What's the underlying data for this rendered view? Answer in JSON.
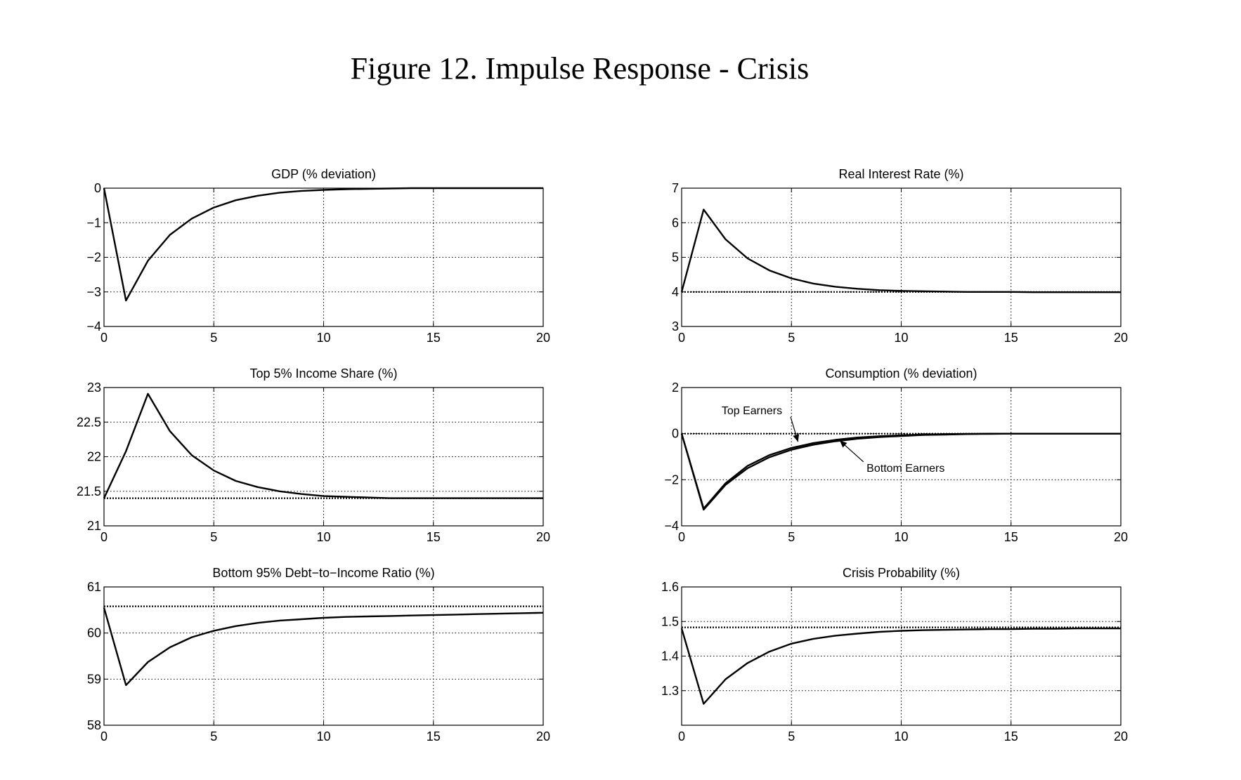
{
  "figure_title": "Figure 12. Impulse Response - Crisis",
  "chart_data": [
    {
      "type": "line",
      "title": "GDP (% deviation)",
      "xlim": [
        0,
        20
      ],
      "ylim": [
        -4,
        0
      ],
      "xticks": [
        "0",
        "5",
        "10",
        "15",
        "20"
      ],
      "yticks": [
        "0",
        "−1",
        "−2",
        "−3",
        "−4"
      ],
      "grid": true,
      "series": [
        {
          "x": [
            0,
            1,
            2,
            3,
            4,
            5,
            6,
            7,
            8,
            9,
            10,
            11,
            12,
            13,
            14,
            15,
            16,
            17,
            18,
            19,
            20
          ],
          "y": [
            0,
            -3.25,
            -2.1,
            -1.35,
            -0.88,
            -0.56,
            -0.35,
            -0.22,
            -0.13,
            -0.08,
            -0.05,
            -0.03,
            -0.02,
            -0.01,
            0,
            0,
            0,
            0,
            0,
            0,
            0
          ],
          "style": "solid"
        }
      ]
    },
    {
      "type": "line",
      "title": "Real Interest Rate (%)",
      "xlim": [
        0,
        20
      ],
      "ylim": [
        3,
        7
      ],
      "xticks": [
        "0",
        "5",
        "10",
        "15",
        "20"
      ],
      "yticks": [
        "7",
        "6",
        "5",
        "4",
        "3"
      ],
      "grid": true,
      "series": [
        {
          "x": [
            0,
            1,
            2,
            3,
            4,
            5,
            6,
            7,
            8,
            9,
            10,
            11,
            12,
            13,
            14,
            15,
            16,
            17,
            18,
            19,
            20
          ],
          "y": [
            4.0,
            6.38,
            5.52,
            4.97,
            4.62,
            4.39,
            4.24,
            4.15,
            4.09,
            4.05,
            4.03,
            4.02,
            4.01,
            4.0,
            4.0,
            4.0,
            3.99,
            3.99,
            3.99,
            3.99,
            3.99
          ],
          "style": "solid"
        },
        {
          "x": [
            0,
            20
          ],
          "y": [
            4.0,
            4.0
          ],
          "style": "dotted"
        }
      ]
    },
    {
      "type": "line",
      "title": "Top 5% Income Share (%)",
      "xlim": [
        0,
        20
      ],
      "ylim": [
        21,
        23
      ],
      "xticks": [
        "0",
        "5",
        "10",
        "15",
        "20"
      ],
      "yticks": [
        "23",
        "22.5",
        "22",
        "21.5",
        "21"
      ],
      "grid": true,
      "series": [
        {
          "x": [
            0,
            1,
            2,
            3,
            4,
            5,
            6,
            7,
            8,
            9,
            10,
            11,
            12,
            13,
            14,
            15,
            16,
            17,
            18,
            19,
            20
          ],
          "y": [
            21.4,
            22.08,
            22.91,
            22.37,
            22.02,
            21.8,
            21.65,
            21.56,
            21.5,
            21.46,
            21.43,
            21.42,
            21.41,
            21.4,
            21.4,
            21.4,
            21.4,
            21.4,
            21.4,
            21.4,
            21.4
          ],
          "style": "solid"
        },
        {
          "x": [
            0,
            20
          ],
          "y": [
            21.4,
            21.4
          ],
          "style": "dotted"
        }
      ]
    },
    {
      "type": "line",
      "title": "Consumption (% deviation)",
      "xlim": [
        0,
        20
      ],
      "ylim": [
        -4,
        2
      ],
      "xticks": [
        "0",
        "5",
        "10",
        "15",
        "20"
      ],
      "yticks": [
        "2",
        "0",
        "−2",
        "−4"
      ],
      "grid": true,
      "series": [
        {
          "x": [
            0,
            1,
            2,
            3,
            4,
            5,
            6,
            7,
            8,
            9,
            10,
            11,
            12,
            13,
            14,
            15,
            16,
            17,
            18,
            19,
            20
          ],
          "y": [
            0,
            -3.25,
            -2.15,
            -1.4,
            -0.93,
            -0.62,
            -0.41,
            -0.27,
            -0.17,
            -0.11,
            -0.07,
            -0.04,
            -0.02,
            -0.01,
            0,
            0,
            0,
            0,
            0,
            0,
            0
          ],
          "style": "solid"
        },
        {
          "x": [
            0,
            1,
            2,
            3,
            4,
            5,
            6,
            7,
            8,
            9,
            10,
            11,
            12,
            13,
            14,
            15,
            16,
            17,
            18,
            19,
            20
          ],
          "y": [
            0,
            -3.3,
            -2.22,
            -1.5,
            -1.02,
            -0.7,
            -0.48,
            -0.33,
            -0.22,
            -0.15,
            -0.1,
            -0.06,
            -0.04,
            -0.02,
            -0.01,
            0,
            0,
            0,
            0,
            0,
            0
          ],
          "style": "solid"
        },
        {
          "x": [
            0,
            20
          ],
          "y": [
            0,
            0
          ],
          "style": "dotted"
        }
      ],
      "annotations": [
        {
          "text": "Top Earners",
          "point": [
            5.3,
            -0.35
          ],
          "text_at": [
            3.2,
            0.85
          ]
        },
        {
          "text": "Bottom Earners",
          "point": [
            7.2,
            -0.3
          ],
          "text_at": [
            10.2,
            -1.65
          ]
        }
      ]
    },
    {
      "type": "line",
      "title": "Bottom 95% Debt−to−Income Ratio (%)",
      "xlim": [
        0,
        20
      ],
      "ylim": [
        58,
        61
      ],
      "xticks": [
        "0",
        "5",
        "10",
        "15",
        "20"
      ],
      "yticks": [
        "61",
        "60",
        "59",
        "58"
      ],
      "grid": true,
      "series": [
        {
          "x": [
            0,
            1,
            2,
            3,
            4,
            5,
            6,
            7,
            8,
            9,
            10,
            11,
            12,
            13,
            14,
            15,
            16,
            17,
            18,
            19,
            20
          ],
          "y": [
            60.55,
            58.87,
            59.37,
            59.69,
            59.91,
            60.05,
            60.15,
            60.22,
            60.27,
            60.3,
            60.33,
            60.35,
            60.36,
            60.37,
            60.38,
            60.39,
            60.4,
            60.41,
            60.42,
            60.43,
            60.44
          ],
          "style": "solid"
        },
        {
          "x": [
            0,
            20
          ],
          "y": [
            60.58,
            60.58
          ],
          "style": "dotted"
        }
      ]
    },
    {
      "type": "line",
      "title": "Crisis Probability (%)",
      "xlim": [
        0,
        20
      ],
      "ylim": [
        1.2,
        1.6
      ],
      "xticks": [
        "0",
        "5",
        "10",
        "15",
        "20"
      ],
      "yticks": [
        "1.6",
        "1.5",
        "1.4",
        "1.3"
      ],
      "grid": true,
      "series": [
        {
          "x": [
            0,
            1,
            2,
            3,
            4,
            5,
            6,
            7,
            8,
            9,
            10,
            11,
            12,
            13,
            14,
            15,
            16,
            17,
            18,
            19,
            20
          ],
          "y": [
            1.48,
            1.262,
            1.333,
            1.38,
            1.413,
            1.436,
            1.45,
            1.459,
            1.465,
            1.47,
            1.473,
            1.475,
            1.476,
            1.477,
            1.478,
            1.478,
            1.479,
            1.479,
            1.48,
            1.48,
            1.48
          ],
          "style": "solid"
        },
        {
          "x": [
            0,
            20
          ],
          "y": [
            1.483,
            1.483
          ],
          "style": "dotted"
        }
      ]
    }
  ]
}
